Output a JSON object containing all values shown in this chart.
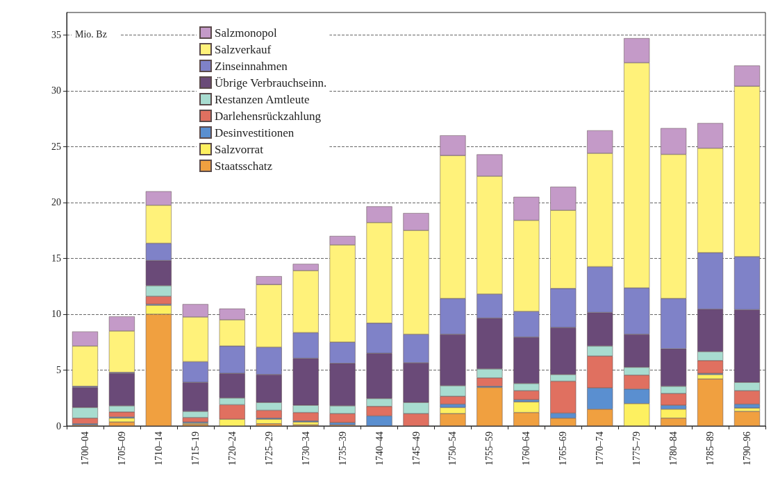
{
  "chart_data": {
    "type": "bar",
    "stacked": true,
    "ylabel": "Mio. Bz",
    "categories": [
      "1700–04",
      "1705–09",
      "1710–14",
      "1715–19",
      "1720–24",
      "1725–29",
      "1730–34",
      "1735–39",
      "1740–44",
      "1745–49",
      "1750–54",
      "1755–59",
      "1760–64",
      "1765–69",
      "1770–74",
      "1775–79",
      "1780–84",
      "1785–89",
      "1790–96"
    ],
    "series": [
      {
        "name": "Staatsschatz",
        "color": "#f0a040",
        "values": [
          0.1,
          0.35,
          10.0,
          0.15,
          0,
          0.2,
          0.1,
          0.1,
          0,
          0,
          1.1,
          3.45,
          1.2,
          0.7,
          1.5,
          0,
          0.7,
          4.2,
          1.3
        ]
      },
      {
        "name": "Salzvorrat",
        "color": "#fdf060",
        "values": [
          0,
          0.35,
          0.8,
          0.1,
          0.6,
          0.4,
          0.25,
          0,
          0,
          0,
          0.55,
          0,
          0.95,
          0,
          0,
          2.0,
          0.8,
          0.4,
          0.3
        ]
      },
      {
        "name": "Desinvestitionen",
        "color": "#5a8fd0",
        "values": [
          0.1,
          0.1,
          0.1,
          0.1,
          0,
          0.1,
          0.1,
          0.2,
          0.9,
          0,
          0.3,
          0.1,
          0.2,
          0.45,
          1.9,
          1.3,
          0.35,
          0.1,
          0.35
        ]
      },
      {
        "name": "Darlehensrückzahlung",
        "color": "#e07060",
        "values": [
          0.5,
          0.45,
          0.7,
          0.4,
          1.3,
          0.7,
          0.75,
          0.8,
          0.85,
          1.1,
          0.7,
          0.75,
          0.8,
          2.85,
          2.85,
          1.25,
          1.05,
          1.15,
          1.2
        ]
      },
      {
        "name": "Restanzen Amtleute",
        "color": "#a8dcd0",
        "values": [
          0.95,
          0.55,
          0.95,
          0.55,
          0.6,
          0.7,
          0.65,
          0.7,
          0.7,
          1.0,
          0.95,
          0.8,
          0.65,
          0.6,
          0.9,
          0.7,
          0.65,
          0.8,
          0.75
        ]
      },
      {
        "name": "Übrige Verbrauchseinn.",
        "color": "#6a4a78",
        "values": [
          1.8,
          2.9,
          2.25,
          2.6,
          2.2,
          2.5,
          4.2,
          3.8,
          4.05,
          3.55,
          4.6,
          4.55,
          4.15,
          4.2,
          3.0,
          2.95,
          3.35,
          3.8,
          6.5
        ]
      },
      {
        "name": "Zinseinnahmen",
        "color": "#7f82c8",
        "values": [
          0.1,
          0.1,
          1.55,
          1.85,
          2.45,
          2.45,
          2.3,
          1.9,
          2.7,
          2.55,
          3.2,
          2.15,
          2.3,
          3.5,
          4.1,
          4.15,
          4.5,
          5.05,
          4.75
        ]
      },
      {
        "name": "Salzverkauf",
        "color": "#fff27a",
        "values": [
          3.6,
          3.7,
          3.4,
          4.0,
          2.35,
          5.6,
          5.55,
          8.7,
          9.0,
          9.3,
          12.8,
          10.55,
          8.15,
          7.0,
          10.15,
          20.15,
          12.9,
          9.35,
          15.25
        ]
      },
      {
        "name": "Salzmonopol",
        "color": "#c49ac8",
        "values": [
          1.3,
          1.3,
          1.25,
          1.15,
          1.0,
          0.75,
          0.6,
          0.8,
          1.45,
          1.55,
          1.8,
          1.95,
          2.1,
          2.1,
          2.05,
          2.2,
          2.35,
          2.25,
          1.85
        ]
      }
    ],
    "ylim": [
      0,
      37
    ],
    "yticks": [
      0,
      5,
      10,
      15,
      20,
      25,
      30,
      35
    ],
    "grid": "y",
    "legend": "top left"
  }
}
